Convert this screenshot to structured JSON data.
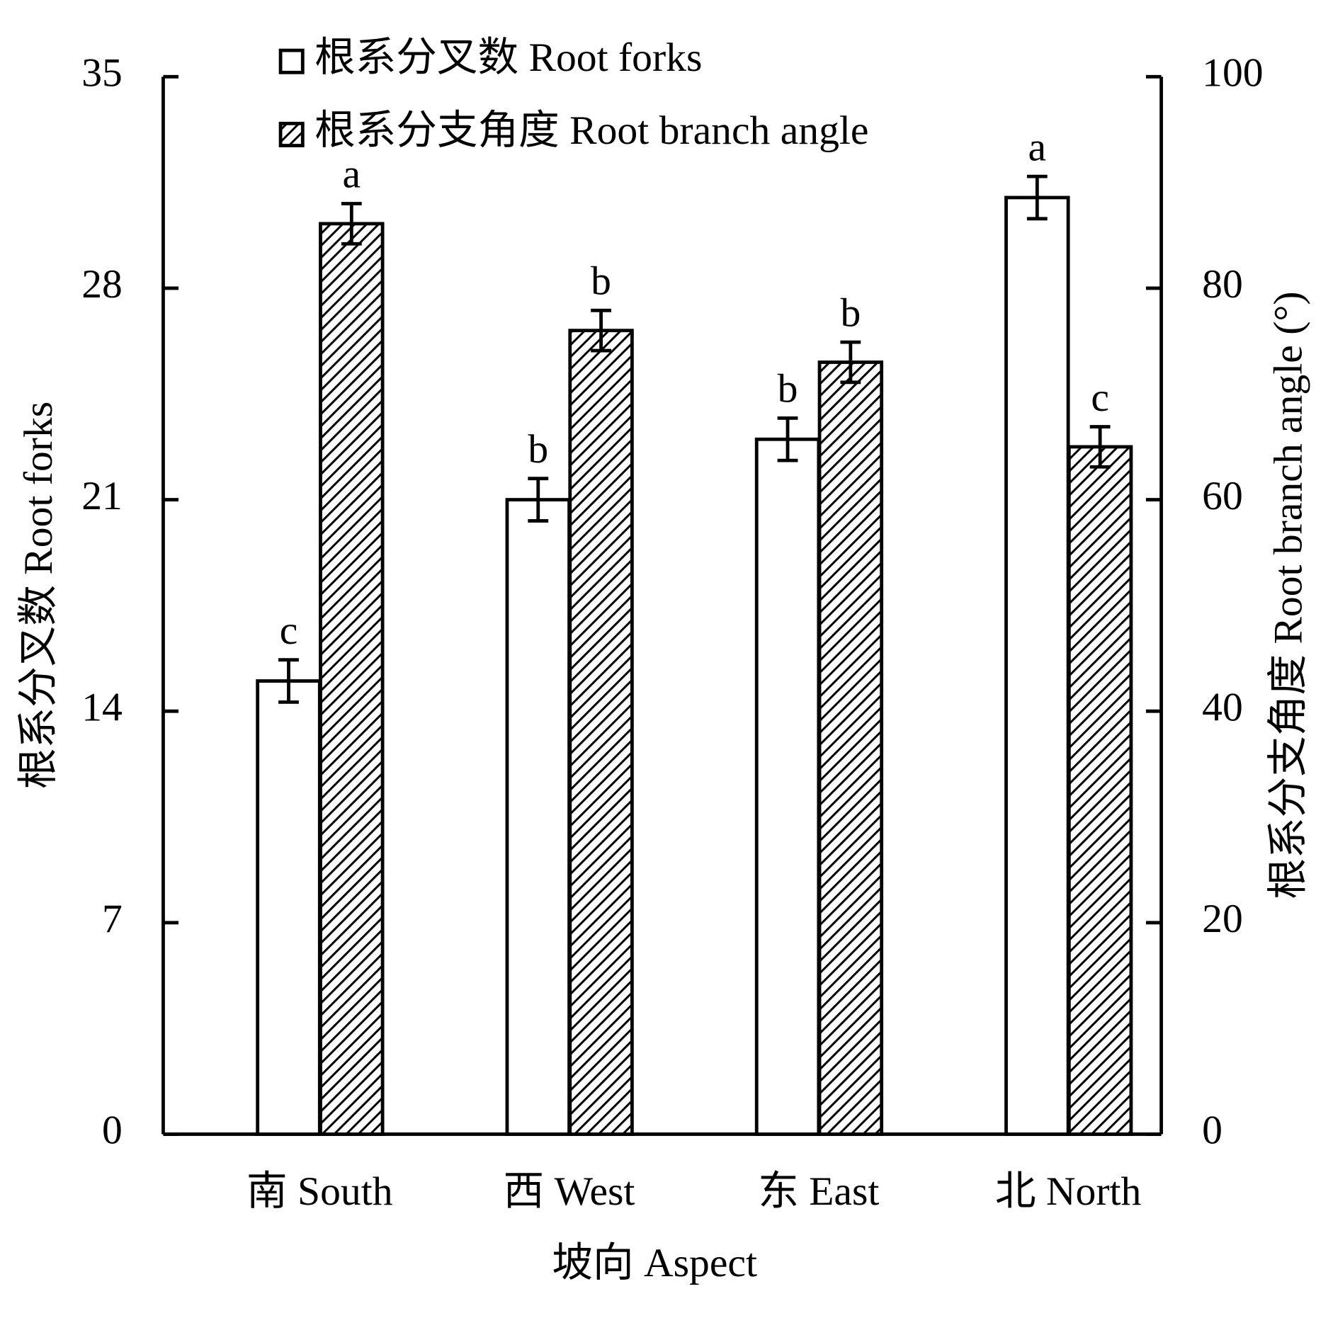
{
  "chart_data": {
    "type": "bar",
    "categories": [
      "南 South",
      "西 West",
      "东 East",
      "北 North"
    ],
    "x_label": "坡向 Aspect",
    "y_label": "根系分叉数 Root forks",
    "y2_label": "根系分支角度 Root branch angle (°)",
    "ylim": [
      0,
      35
    ],
    "yticks": [
      0,
      7,
      14,
      21,
      28,
      35
    ],
    "y2lim": [
      0,
      100
    ],
    "y2ticks": [
      0,
      20,
      40,
      60,
      80,
      100
    ],
    "series": [
      {
        "name": "根系分叉数 Root forks",
        "color": "#ffffff",
        "pattern": "none",
        "values": [
          15.0,
          21.0,
          23.0,
          31.0
        ],
        "errors": [
          0.7,
          0.7,
          0.7,
          0.7
        ],
        "letters": [
          "c",
          "b",
          "b",
          "a"
        ]
      },
      {
        "name": "根系分支角度 Root branch angle",
        "color": "#ffffff",
        "pattern": "hatch",
        "axis": "y2",
        "values": [
          86.1,
          76.0,
          73.0,
          65.0
        ],
        "errors": [
          1.9,
          1.9,
          1.9,
          1.9
        ],
        "letters": [
          "a",
          "b",
          "b",
          "c"
        ]
      }
    ]
  }
}
